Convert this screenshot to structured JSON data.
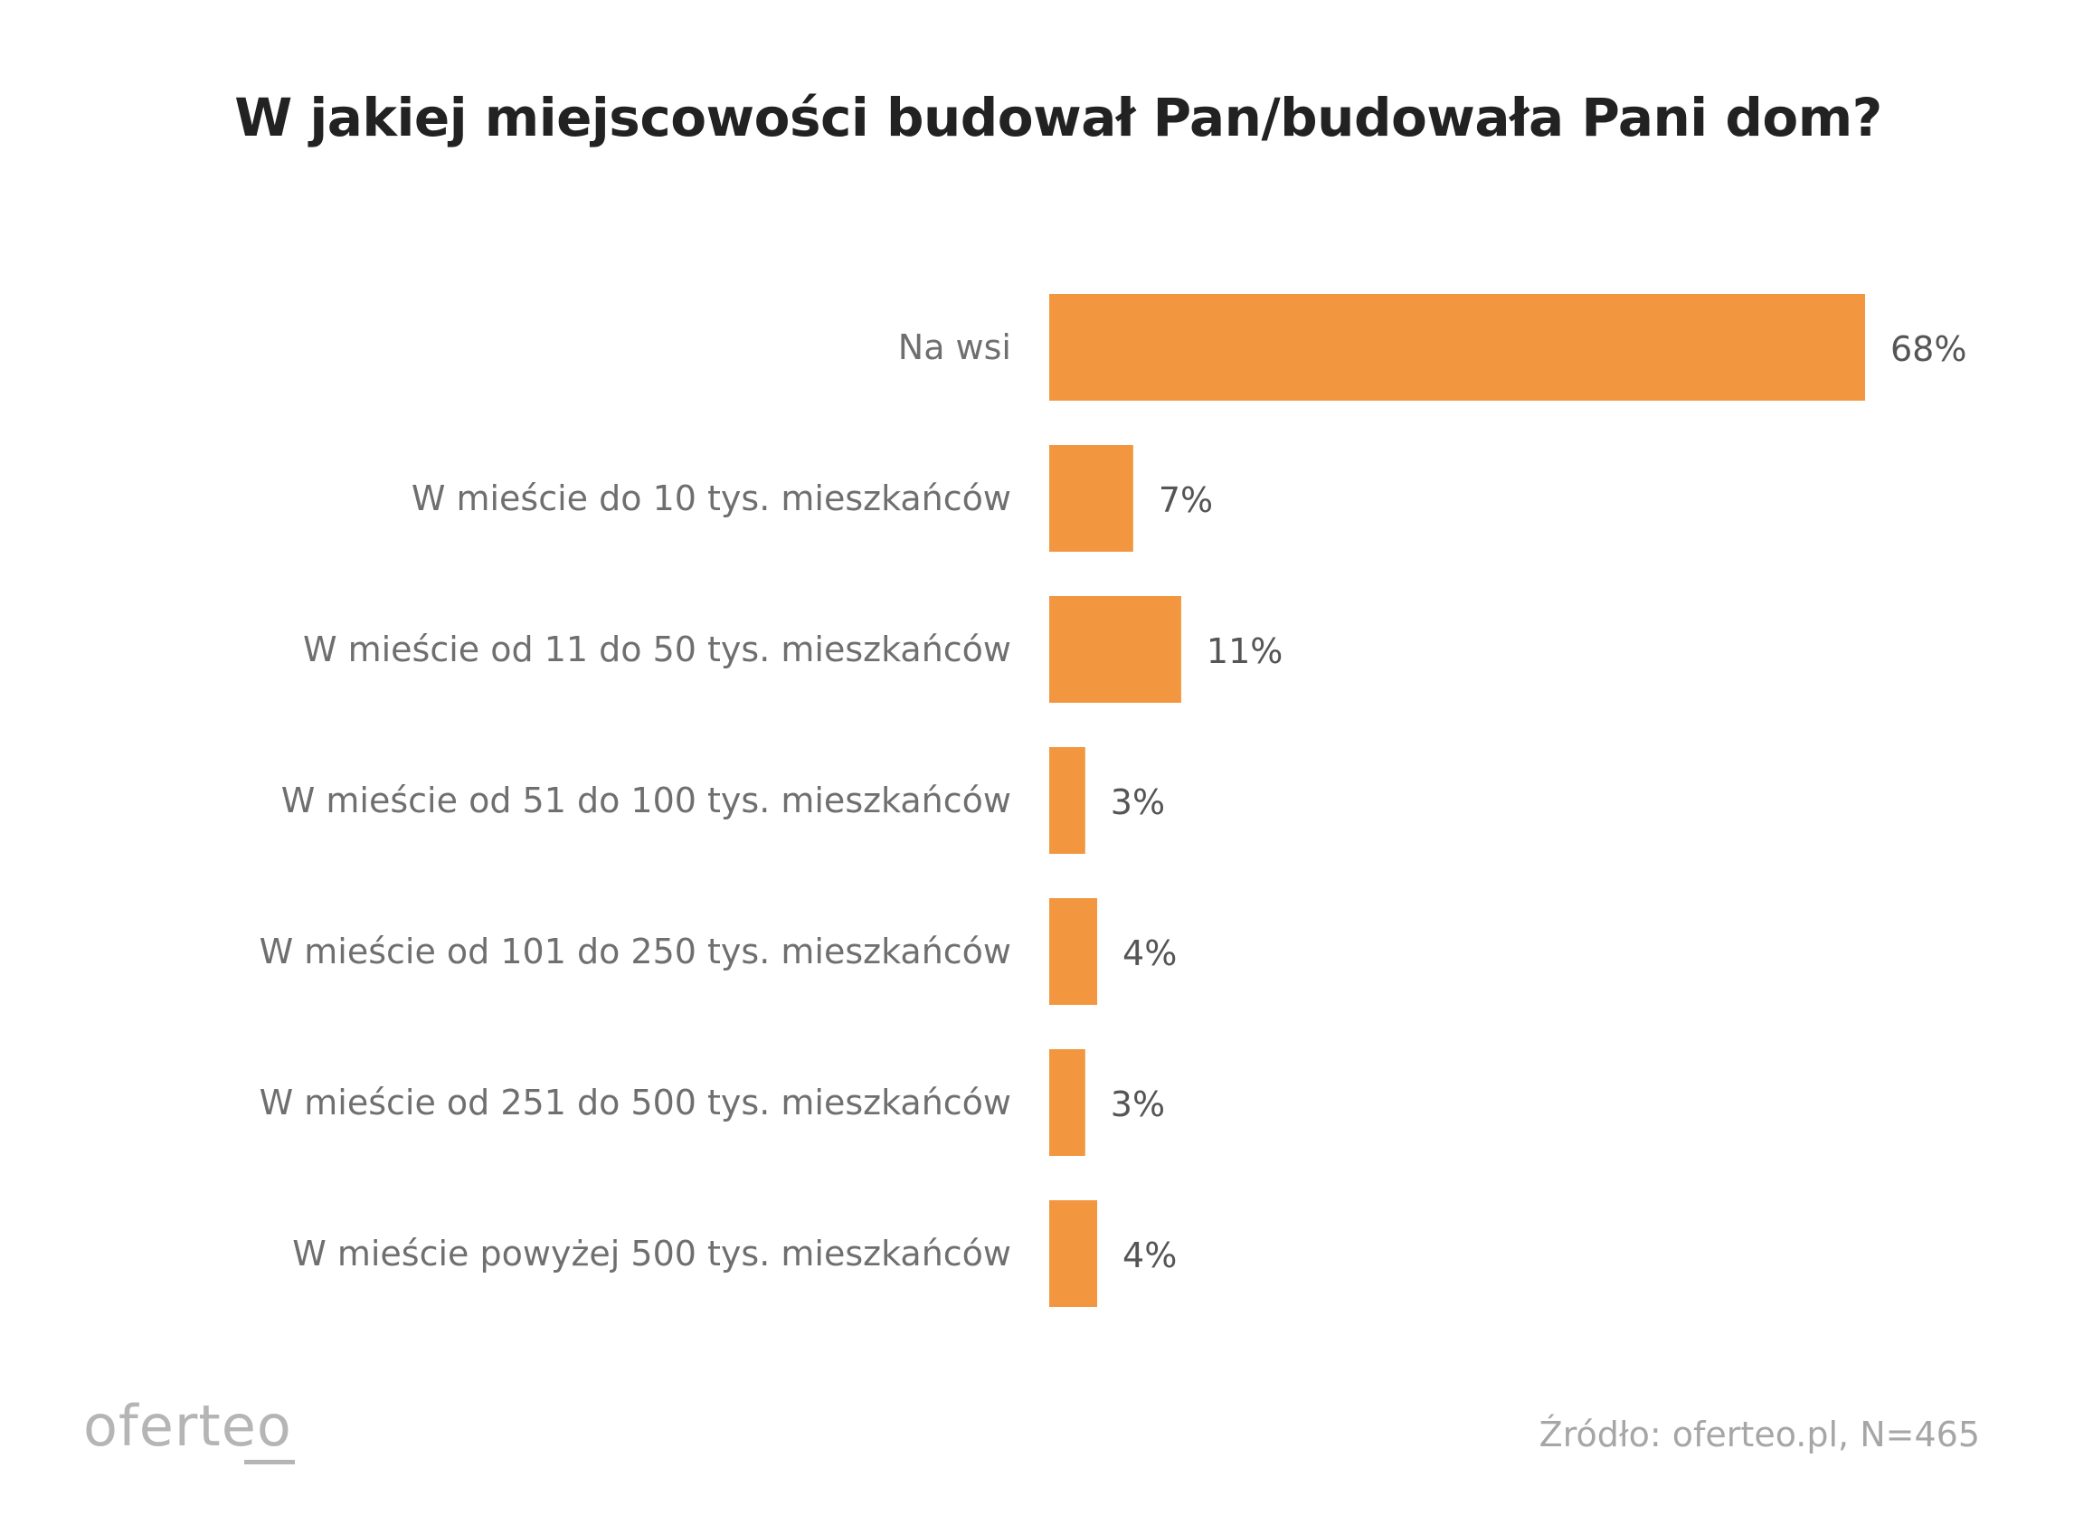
{
  "colors": {
    "bar": "#F29740",
    "title": "#222222",
    "category_label": "#6f6f6f",
    "value_label": "#555555",
    "footer": "#a6a6a6"
  },
  "chart_data": {
    "type": "bar",
    "orientation": "horizontal",
    "title": "W jakiej miejscowości budował Pan/budowała Pani dom?",
    "categories": [
      "Na wsi",
      "W mieście do 10 tys. mieszkańców",
      "W mieście od 11 do 50 tys. mieszkańców",
      "W mieście od 51 do 100 tys. mieszkańców",
      "W mieście od 101 do 250 tys. mieszkańców",
      "W mieście od 251 do 500 tys. mieszkańców",
      "W mieście powyżej 500 tys. mieszkańców"
    ],
    "values": [
      68,
      7,
      11,
      3,
      4,
      3,
      4
    ],
    "value_labels": [
      "68%",
      "7%",
      "11%",
      "3%",
      "4%",
      "3%",
      "4%"
    ],
    "unit": "%",
    "xlim": [
      0,
      68
    ],
    "grid": false,
    "legend": "none"
  },
  "footer": {
    "logo": "oferteo",
    "source": "Źródło: oferteo.pl, N=465"
  }
}
